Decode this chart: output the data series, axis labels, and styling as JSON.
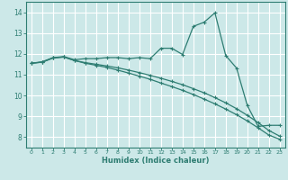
{
  "xlabel": "Humidex (Indice chaleur)",
  "bg_color": "#cce8e8",
  "grid_color": "#ffffff",
  "line_color": "#2e7d72",
  "xlim": [
    -0.5,
    23.5
  ],
  "ylim": [
    7.5,
    14.5
  ],
  "xticks": [
    0,
    1,
    2,
    3,
    4,
    5,
    6,
    7,
    8,
    9,
    10,
    11,
    12,
    13,
    14,
    15,
    16,
    17,
    18,
    19,
    20,
    21,
    22,
    23
  ],
  "yticks": [
    8,
    9,
    10,
    11,
    12,
    13,
    14
  ],
  "line1_x": [
    0,
    1,
    2,
    3,
    4,
    5,
    6,
    7,
    8,
    9,
    10,
    11,
    12,
    13,
    14,
    15,
    16,
    17,
    18,
    19,
    20,
    21,
    22,
    23
  ],
  "line1_y": [
    11.55,
    11.62,
    11.82,
    11.87,
    11.72,
    11.77,
    11.77,
    11.82,
    11.82,
    11.77,
    11.82,
    11.77,
    12.27,
    12.27,
    11.97,
    13.32,
    13.52,
    13.97,
    11.92,
    11.32,
    9.52,
    8.52,
    8.57,
    8.57
  ],
  "line2_x": [
    0,
    1,
    2,
    3,
    4,
    5,
    6,
    7,
    8,
    9,
    10,
    11,
    12,
    13,
    14,
    15,
    16,
    17,
    18,
    19,
    20,
    21,
    22,
    23
  ],
  "line2_y": [
    11.55,
    11.6,
    11.8,
    11.85,
    11.68,
    11.55,
    11.45,
    11.35,
    11.22,
    11.08,
    10.93,
    10.78,
    10.6,
    10.43,
    10.25,
    10.05,
    9.83,
    9.6,
    9.35,
    9.08,
    8.78,
    8.45,
    8.1,
    7.9
  ],
  "line3_x": [
    0,
    1,
    2,
    3,
    4,
    5,
    6,
    7,
    8,
    9,
    10,
    11,
    12,
    13,
    14,
    15,
    16,
    17,
    18,
    19,
    20,
    21,
    22,
    23
  ],
  "line3_y": [
    11.55,
    11.6,
    11.8,
    11.85,
    11.68,
    11.58,
    11.5,
    11.42,
    11.33,
    11.22,
    11.1,
    10.97,
    10.83,
    10.68,
    10.52,
    10.33,
    10.13,
    9.9,
    9.65,
    9.37,
    9.05,
    8.7,
    8.32,
    8.05
  ]
}
